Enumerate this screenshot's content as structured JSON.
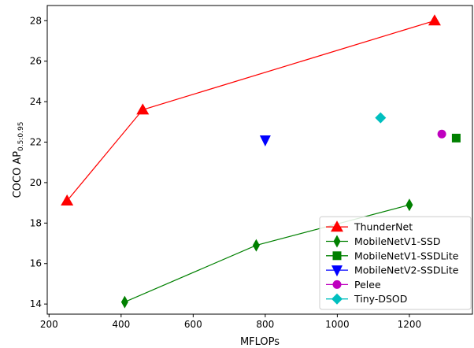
{
  "chart_data": {
    "type": "scatter",
    "xlabel": "MFLOPs",
    "ylabel": "COCO AP",
    "ylabel_sub": "0.5:0.95",
    "xlim": [
      195,
      1375
    ],
    "ylim": [
      13.5,
      28.75
    ],
    "xticks": [
      200,
      400,
      600,
      800,
      1000,
      1200
    ],
    "yticks": [
      14,
      16,
      18,
      20,
      22,
      24,
      26,
      28
    ],
    "legend_position": "lower right",
    "series": [
      {
        "name": "ThunderNet",
        "color": "#ff0000",
        "marker": "triangle-up",
        "line": true,
        "points": [
          [
            250,
            19.1
          ],
          [
            460,
            23.6
          ],
          [
            1270,
            28.0
          ]
        ]
      },
      {
        "name": "MobileNetV1-SSD",
        "color": "#008000",
        "marker": "thin-diamond",
        "line": true,
        "points": [
          [
            410,
            14.1
          ],
          [
            775,
            16.9
          ],
          [
            1200,
            18.9
          ]
        ]
      },
      {
        "name": "MobileNetV1-SSDLite",
        "color": "#008000",
        "marker": "square",
        "line": false,
        "points": [
          [
            1330,
            22.2
          ]
        ]
      },
      {
        "name": "MobileNetV2-SSDLite",
        "color": "#0000ff",
        "marker": "triangle-down",
        "line": false,
        "points": [
          [
            800,
            22.1
          ]
        ]
      },
      {
        "name": "Pelee",
        "color": "#bf00bf",
        "marker": "circle",
        "line": false,
        "points": [
          [
            1290,
            22.4
          ]
        ]
      },
      {
        "name": "Tiny-DSOD",
        "color": "#00bfbf",
        "marker": "diamond",
        "line": false,
        "points": [
          [
            1120,
            23.2
          ]
        ]
      }
    ]
  }
}
